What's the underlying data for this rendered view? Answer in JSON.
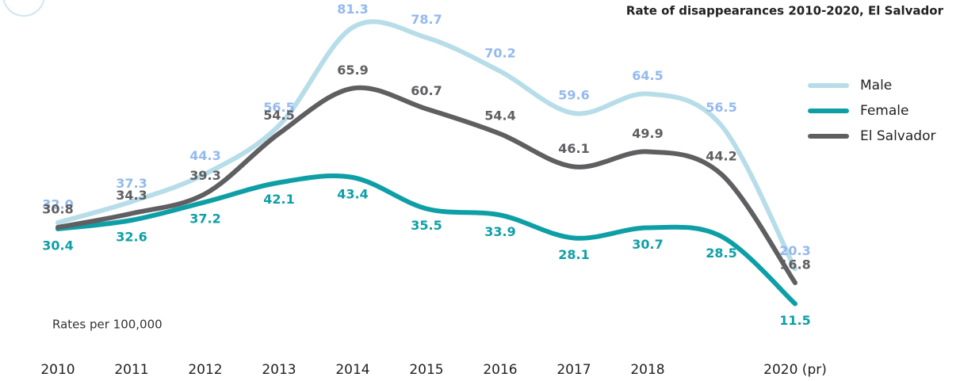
{
  "chart_data": {
    "type": "line",
    "title": "Rate of disappearances 2010-2020, El Salvador",
    "subtitle": "Rates per 100,000",
    "categories": [
      "2010",
      "2011",
      "2012",
      "2013",
      "2014",
      "2015",
      "2016",
      "2017",
      "2018",
      null,
      "2020 (pr)"
    ],
    "ylim": [
      0,
      88
    ],
    "legend": "right",
    "series": [
      {
        "name": "Male",
        "color": "#b7dde9",
        "label_color": "#93b9ee",
        "values": [
          32.0,
          37.3,
          44.3,
          56.5,
          81.3,
          78.7,
          70.2,
          59.6,
          64.5,
          56.5,
          20.3
        ],
        "value_labels": [
          "32.0",
          "37.3",
          "44.3",
          "56.5",
          "81.3",
          "78.7",
          "70.2",
          "59.6",
          "64.5",
          "56.5",
          "20.3"
        ]
      },
      {
        "name": "Female",
        "color": "#0e9fa6",
        "label_color": "#0e9fa6",
        "values": [
          30.4,
          32.6,
          37.2,
          42.1,
          43.4,
          35.5,
          33.9,
          28.1,
          30.7,
          28.5,
          11.5
        ],
        "value_labels": [
          "30.4",
          "32.6",
          "37.2",
          "42.1",
          "43.4",
          "35.5",
          "33.9",
          "28.1",
          "30.7",
          "28.5",
          "11.5"
        ]
      },
      {
        "name": "El Salvador",
        "color": "#5f5f62",
        "label_color": "#5f5f62",
        "values": [
          30.8,
          34.3,
          39.3,
          54.5,
          65.9,
          60.7,
          54.4,
          46.1,
          49.9,
          44.2,
          16.8
        ],
        "value_labels": [
          "30.8",
          "34.3",
          "39.3",
          "54.5",
          "65.9",
          "60.7",
          "54.4",
          "46.1",
          "49.9",
          "44.2",
          "16.8"
        ]
      }
    ]
  }
}
